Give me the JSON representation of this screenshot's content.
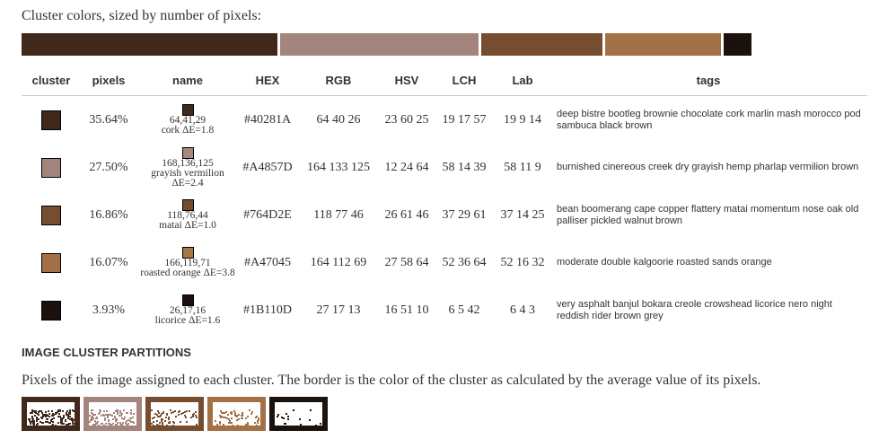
{
  "intro": "Cluster colors, sized by number of pixels:",
  "headers": {
    "cluster": "cluster",
    "pixels": "pixels",
    "name": "name",
    "hex": "HEX",
    "rgb": "RGB",
    "hsv": "HSV",
    "lch": "LCH",
    "lab": "Lab",
    "tags": "tags"
  },
  "clusters": [
    {
      "color": "#40281A",
      "pixels": "35.64%",
      "pct": 35.64,
      "name_color": "#40291D",
      "name_rgb": "64,41,29",
      "name": "cork ΔE=1.8",
      "hex": "#40281A",
      "rgb": "64 40 26",
      "hsv": "23 60 25",
      "lch": "19 17 57",
      "lab": "19 9 14",
      "tags": "deep bistre bootleg brownie chocolate cork marlin mash morocco pod sambuca black brown"
    },
    {
      "color": "#A4857D",
      "pixels": "27.50%",
      "pct": 27.5,
      "name_color": "#A8887D",
      "name_rgb": "168,136,125",
      "name": "grayish vermilion ΔE=2.4",
      "hex": "#A4857D",
      "rgb": "164 133 125",
      "hsv": "12 24 64",
      "lch": "58 14 39",
      "lab": "58 11 9",
      "tags": "burnished cinereous creek dry grayish hemp pharlap vermilion brown"
    },
    {
      "color": "#764D2E",
      "pixels": "16.86%",
      "pct": 16.86,
      "name_color": "#764C2C",
      "name_rgb": "118,76,44",
      "name": "matai ΔE=1.0",
      "hex": "#764D2E",
      "rgb": "118 77 46",
      "hsv": "26 61 46",
      "lch": "37 29 61",
      "lab": "37 14 25",
      "tags": "bean boomerang cape copper flattery matai momentum nose oak old palliser pickled walnut brown"
    },
    {
      "color": "#A47045",
      "pixels": "16.07%",
      "pct": 16.07,
      "name_color": "#A67747",
      "name_rgb": "166,119,71",
      "name": "roasted orange ΔE=3.8",
      "hex": "#A47045",
      "rgb": "164 112 69",
      "hsv": "27 58 64",
      "lch": "52 36 64",
      "lab": "52 16 32",
      "tags": "moderate double kalgoorie roasted sands orange"
    },
    {
      "color": "#1B110D",
      "pixels": "3.93%",
      "pct": 3.93,
      "name_color": "#1A1110",
      "name_rgb": "26,17,16",
      "name": "licorice ΔE=1.6",
      "hex": "#1B110D",
      "rgb": "27 17 13",
      "hsv": "16 51 10",
      "lch": "6 5 42",
      "lab": "6 4 3",
      "tags": "very asphalt banjul bokara creole crowshead licorice nero night reddish rider brown grey"
    }
  ],
  "partitions": {
    "heading": "IMAGE CLUSTER PARTITIONS",
    "description": "Pixels of the image assigned to each cluster. The border is the color of the cluster as calculated by the average value of its pixels."
  }
}
